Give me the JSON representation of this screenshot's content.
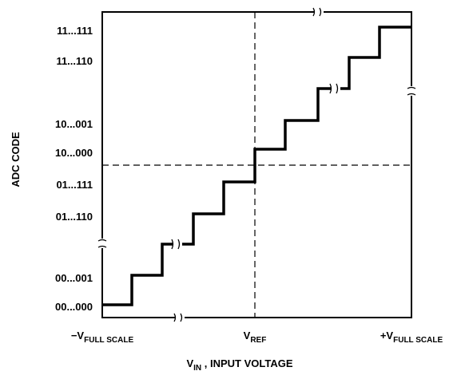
{
  "y_axis": {
    "title": "ADC CODE",
    "codes": [
      "11...111",
      "11...110",
      "10...001",
      "10...000",
      "01...111",
      "01...110",
      "00...001",
      "00...000"
    ]
  },
  "x_axis": {
    "title": {
      "main": "V",
      "sub": "IN",
      "rest": " , INPUT VOLTAGE"
    },
    "labels": [
      {
        "main": "−V",
        "sub": "FULL SCALE"
      },
      {
        "main": "V",
        "sub": "REF"
      },
      {
        "main": "+V",
        "sub": "FULL SCALE"
      }
    ]
  }
}
